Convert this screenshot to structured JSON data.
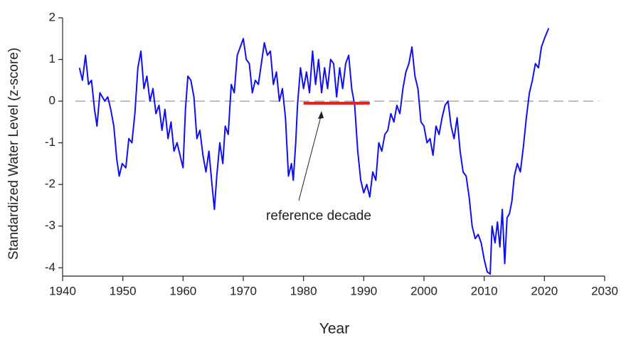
{
  "chart_data": {
    "type": "line",
    "xlabel": "Year",
    "ylabel": "Standardized Water Level (z-score)",
    "annotation": "reference decade",
    "xlim": [
      1940,
      2030
    ],
    "xticks": [
      1940,
      1950,
      1960,
      1970,
      1980,
      1990,
      2000,
      2010,
      2020,
      2030
    ],
    "ylim": [
      -4.2,
      2
    ],
    "yticks": [
      -4,
      -3,
      -2,
      -1,
      0,
      1,
      2
    ],
    "grid": false,
    "reference_line": {
      "value": 0,
      "color": "#999999",
      "dashed": true
    },
    "series": [
      {
        "color": "#1010ee",
        "x": [
          1942.8,
          1943.3,
          1943.8,
          1944.3,
          1944.8,
          1945.3,
          1945.7,
          1946.2,
          1947,
          1947.5,
          1948,
          1948.5,
          1949,
          1949.4,
          1949.9,
          1950.5,
          1951,
          1951.5,
          1952,
          1952.5,
          1953,
          1953.5,
          1954,
          1954.5,
          1955,
          1955.5,
          1956,
          1956.5,
          1957,
          1957.5,
          1958,
          1958.5,
          1959,
          1959.5,
          1960,
          1960.4,
          1960.8,
          1961.3,
          1961.8,
          1962.3,
          1962.8,
          1963.3,
          1963.8,
          1964.3,
          1964.8,
          1965.2,
          1965.6,
          1966.1,
          1966.6,
          1967,
          1967.5,
          1968,
          1968.5,
          1969,
          1969.5,
          1970,
          1970.5,
          1971,
          1971.5,
          1972,
          1972.5,
          1973,
          1973.5,
          1974,
          1974.5,
          1975,
          1975.5,
          1976,
          1976.5,
          1977,
          1977.5,
          1978,
          1978.3,
          1978.7,
          1979,
          1979.5,
          1980,
          1980.5,
          1981,
          1981.5,
          1982,
          1982.5,
          1983,
          1983.5,
          1984,
          1984.5,
          1985,
          1985.5,
          1986,
          1986.5,
          1987,
          1987.5,
          1988,
          1988.5,
          1989,
          1989.5,
          1990,
          1990.5,
          1991,
          1991.5,
          1992,
          1992.5,
          1993,
          1993.5,
          1994,
          1994.5,
          1995,
          1995.5,
          1996,
          1996.5,
          1997,
          1997.5,
          1998,
          1998.5,
          1999,
          1999.5,
          2000,
          2000.5,
          2001,
          2001.5,
          2002,
          2002.5,
          2003,
          2003.5,
          2004,
          2004.5,
          2005,
          2005.5,
          2006,
          2006.5,
          2007,
          2007.5,
          2008,
          2008.5,
          2009,
          2009.5,
          2010,
          2010.5,
          2011,
          2011.3,
          2011.8,
          2012.2,
          2012.6,
          2013,
          2013.4,
          2013.8,
          2014.2,
          2014.6,
          2015,
          2015.5,
          2016,
          2016.5,
          2017,
          2017.5,
          2018,
          2018.5,
          2019,
          2019.5,
          2020,
          2020.7
        ],
        "values": [
          0.8,
          0.5,
          1.1,
          0.4,
          0.5,
          -0.2,
          -0.6,
          0.2,
          0.0,
          0.1,
          -0.2,
          -0.6,
          -1.4,
          -1.8,
          -1.5,
          -1.6,
          -0.9,
          -1.0,
          -0.3,
          0.8,
          1.2,
          0.3,
          0.6,
          0.0,
          0.3,
          -0.3,
          -0.1,
          -0.7,
          -0.2,
          -0.9,
          -0.5,
          -1.2,
          -1.0,
          -1.3,
          -1.6,
          -0.2,
          0.6,
          0.5,
          0.1,
          -0.9,
          -0.7,
          -1.3,
          -1.7,
          -1.2,
          -2.0,
          -2.6,
          -1.8,
          -1.0,
          -1.5,
          -0.6,
          -0.8,
          0.4,
          0.2,
          1.1,
          1.3,
          1.5,
          1.0,
          0.9,
          0.2,
          0.5,
          0.4,
          0.9,
          1.4,
          1.1,
          1.2,
          0.4,
          0.7,
          0.0,
          0.3,
          -0.4,
          -1.8,
          -1.5,
          -1.9,
          -1.0,
          -0.1,
          0.8,
          0.3,
          0.7,
          0.2,
          1.2,
          0.4,
          1.0,
          0.2,
          0.8,
          0.3,
          1.0,
          0.9,
          0.1,
          0.8,
          0.3,
          0.9,
          1.1,
          0.3,
          -0.1,
          -1.2,
          -1.9,
          -2.2,
          -2.0,
          -2.3,
          -1.7,
          -1.9,
          -1.0,
          -1.2,
          -0.8,
          -0.7,
          -0.3,
          -0.5,
          -0.1,
          -0.3,
          0.3,
          0.7,
          0.9,
          1.3,
          0.6,
          0.3,
          -0.5,
          -0.6,
          -1.0,
          -0.9,
          -1.3,
          -0.6,
          -0.8,
          -0.4,
          -0.1,
          0.0,
          -0.6,
          -0.9,
          -0.4,
          -1.2,
          -1.7,
          -1.8,
          -2.3,
          -3.0,
          -3.3,
          -3.2,
          -3.4,
          -3.8,
          -4.1,
          -4.15,
          -3.0,
          -3.4,
          -2.9,
          -3.5,
          -2.6,
          -3.9,
          -2.8,
          -2.7,
          -2.4,
          -1.8,
          -1.5,
          -1.7,
          -1.1,
          -0.4,
          0.2,
          0.5,
          0.9,
          0.8,
          1.3,
          1.5,
          1.75
        ]
      },
      {
        "color": "#ff1a1a",
        "x": [
          1980,
          1991
        ],
        "values": [
          -0.05,
          -0.05
        ]
      }
    ]
  }
}
